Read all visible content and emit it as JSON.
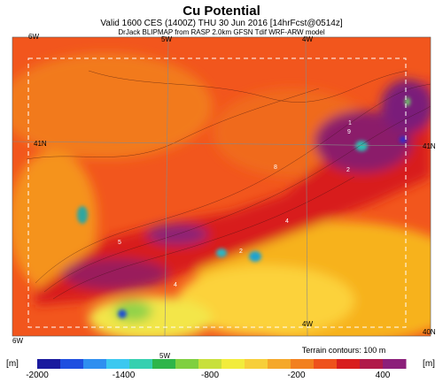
{
  "header": {
    "title": "Cu Potential",
    "subtitle": "Valid 1600 CES (1400Z) THU 30 Jun 2016 [14hrFcst@0514z]",
    "source": "DrJack BLIPMAP from RASP 2.0km GFSN Tdif WRF-ARW model"
  },
  "map": {
    "top_labels": [
      "6W",
      "5W",
      "4W"
    ],
    "left_label": "41N",
    "right_labels": [
      "41N",
      "40N"
    ],
    "bottom_labels": [
      "6W",
      "5W",
      "4W"
    ],
    "contour_labels": [
      "1",
      "9",
      "2",
      "8",
      "4",
      "5",
      "2",
      "4"
    ]
  },
  "note": "Terrain contours: 100 m",
  "colorbar": {
    "unit": "[m]",
    "ticks": [
      -2000,
      -1400,
      -800,
      -200,
      400
    ]
  }
}
